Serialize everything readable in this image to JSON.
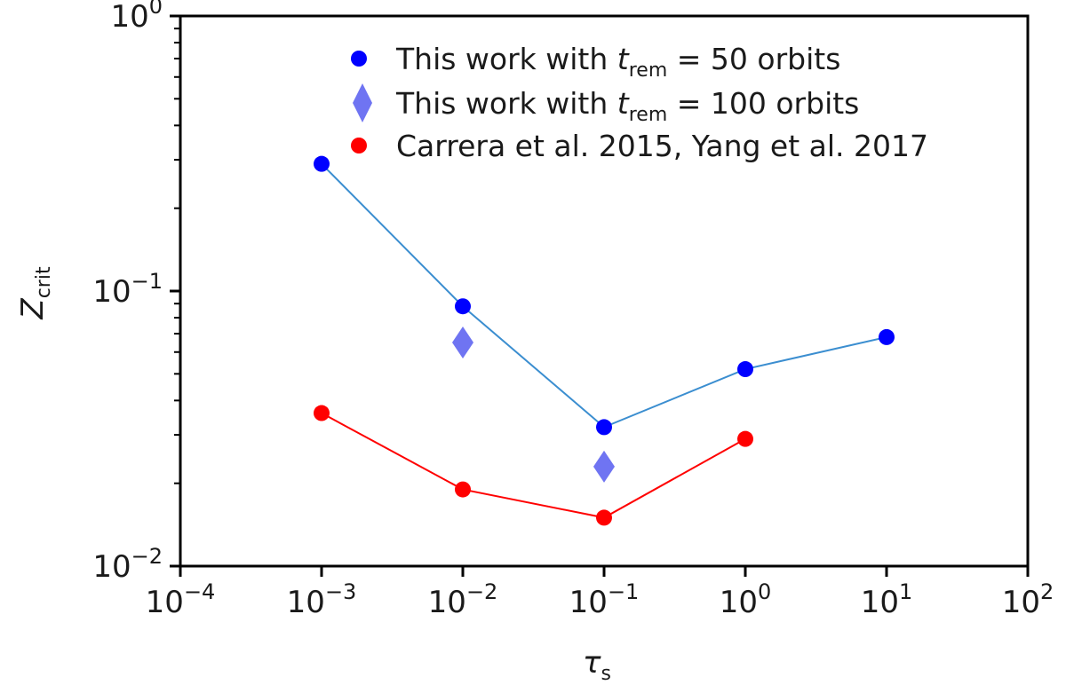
{
  "chart_data": {
    "type": "scatter",
    "title": "",
    "xlabel": {
      "main": "τ",
      "sub": "s"
    },
    "ylabel": {
      "main": "Z",
      "sub": "crit"
    },
    "xscale": "log",
    "yscale": "log",
    "xlim": [
      0.0001,
      100
    ],
    "ylim": [
      0.01,
      1
    ],
    "x_ticks": [
      {
        "value": 0.0001,
        "base": "10",
        "exp": "−4"
      },
      {
        "value": 0.001,
        "base": "10",
        "exp": "−3"
      },
      {
        "value": 0.01,
        "base": "10",
        "exp": "−2"
      },
      {
        "value": 0.1,
        "base": "10",
        "exp": "−1"
      },
      {
        "value": 1,
        "base": "10",
        "exp": "0"
      },
      {
        "value": 10,
        "base": "10",
        "exp": "1"
      },
      {
        "value": 100,
        "base": "10",
        "exp": "2"
      }
    ],
    "y_ticks": [
      {
        "value": 0.01,
        "base": "10",
        "exp": "−2"
      },
      {
        "value": 0.1,
        "base": "10",
        "exp": "−1"
      },
      {
        "value": 1,
        "base": "10",
        "exp": "0"
      }
    ],
    "grid": false,
    "legend_position": "top-right",
    "series": [
      {
        "legend": {
          "pre": "This work with ",
          "var": "t",
          "sub": "rem",
          "post": " = 50 orbits"
        },
        "marker": "circle",
        "color": "#0000ff",
        "line": true,
        "line_color": "#3b8ed0",
        "x": [
          0.001,
          0.01,
          0.1,
          1,
          10
        ],
        "y": [
          0.29,
          0.088,
          0.032,
          0.052,
          0.068
        ]
      },
      {
        "legend": {
          "pre": "This work with ",
          "var": "t",
          "sub": "rem",
          "post": " = 100 orbits"
        },
        "marker": "diamond",
        "color": "#6f74f2",
        "line": false,
        "x": [
          0.01,
          0.1
        ],
        "y": [
          0.065,
          0.023
        ]
      },
      {
        "legend": {
          "pre": "Carrera et al. 2015, Yang et al. 2017",
          "var": "",
          "sub": "",
          "post": ""
        },
        "marker": "circle",
        "color": "#ff0000",
        "line": true,
        "line_color": "#ff0000",
        "x": [
          0.001,
          0.01,
          0.1,
          1
        ],
        "y": [
          0.036,
          0.019,
          0.015,
          0.029
        ]
      }
    ]
  }
}
